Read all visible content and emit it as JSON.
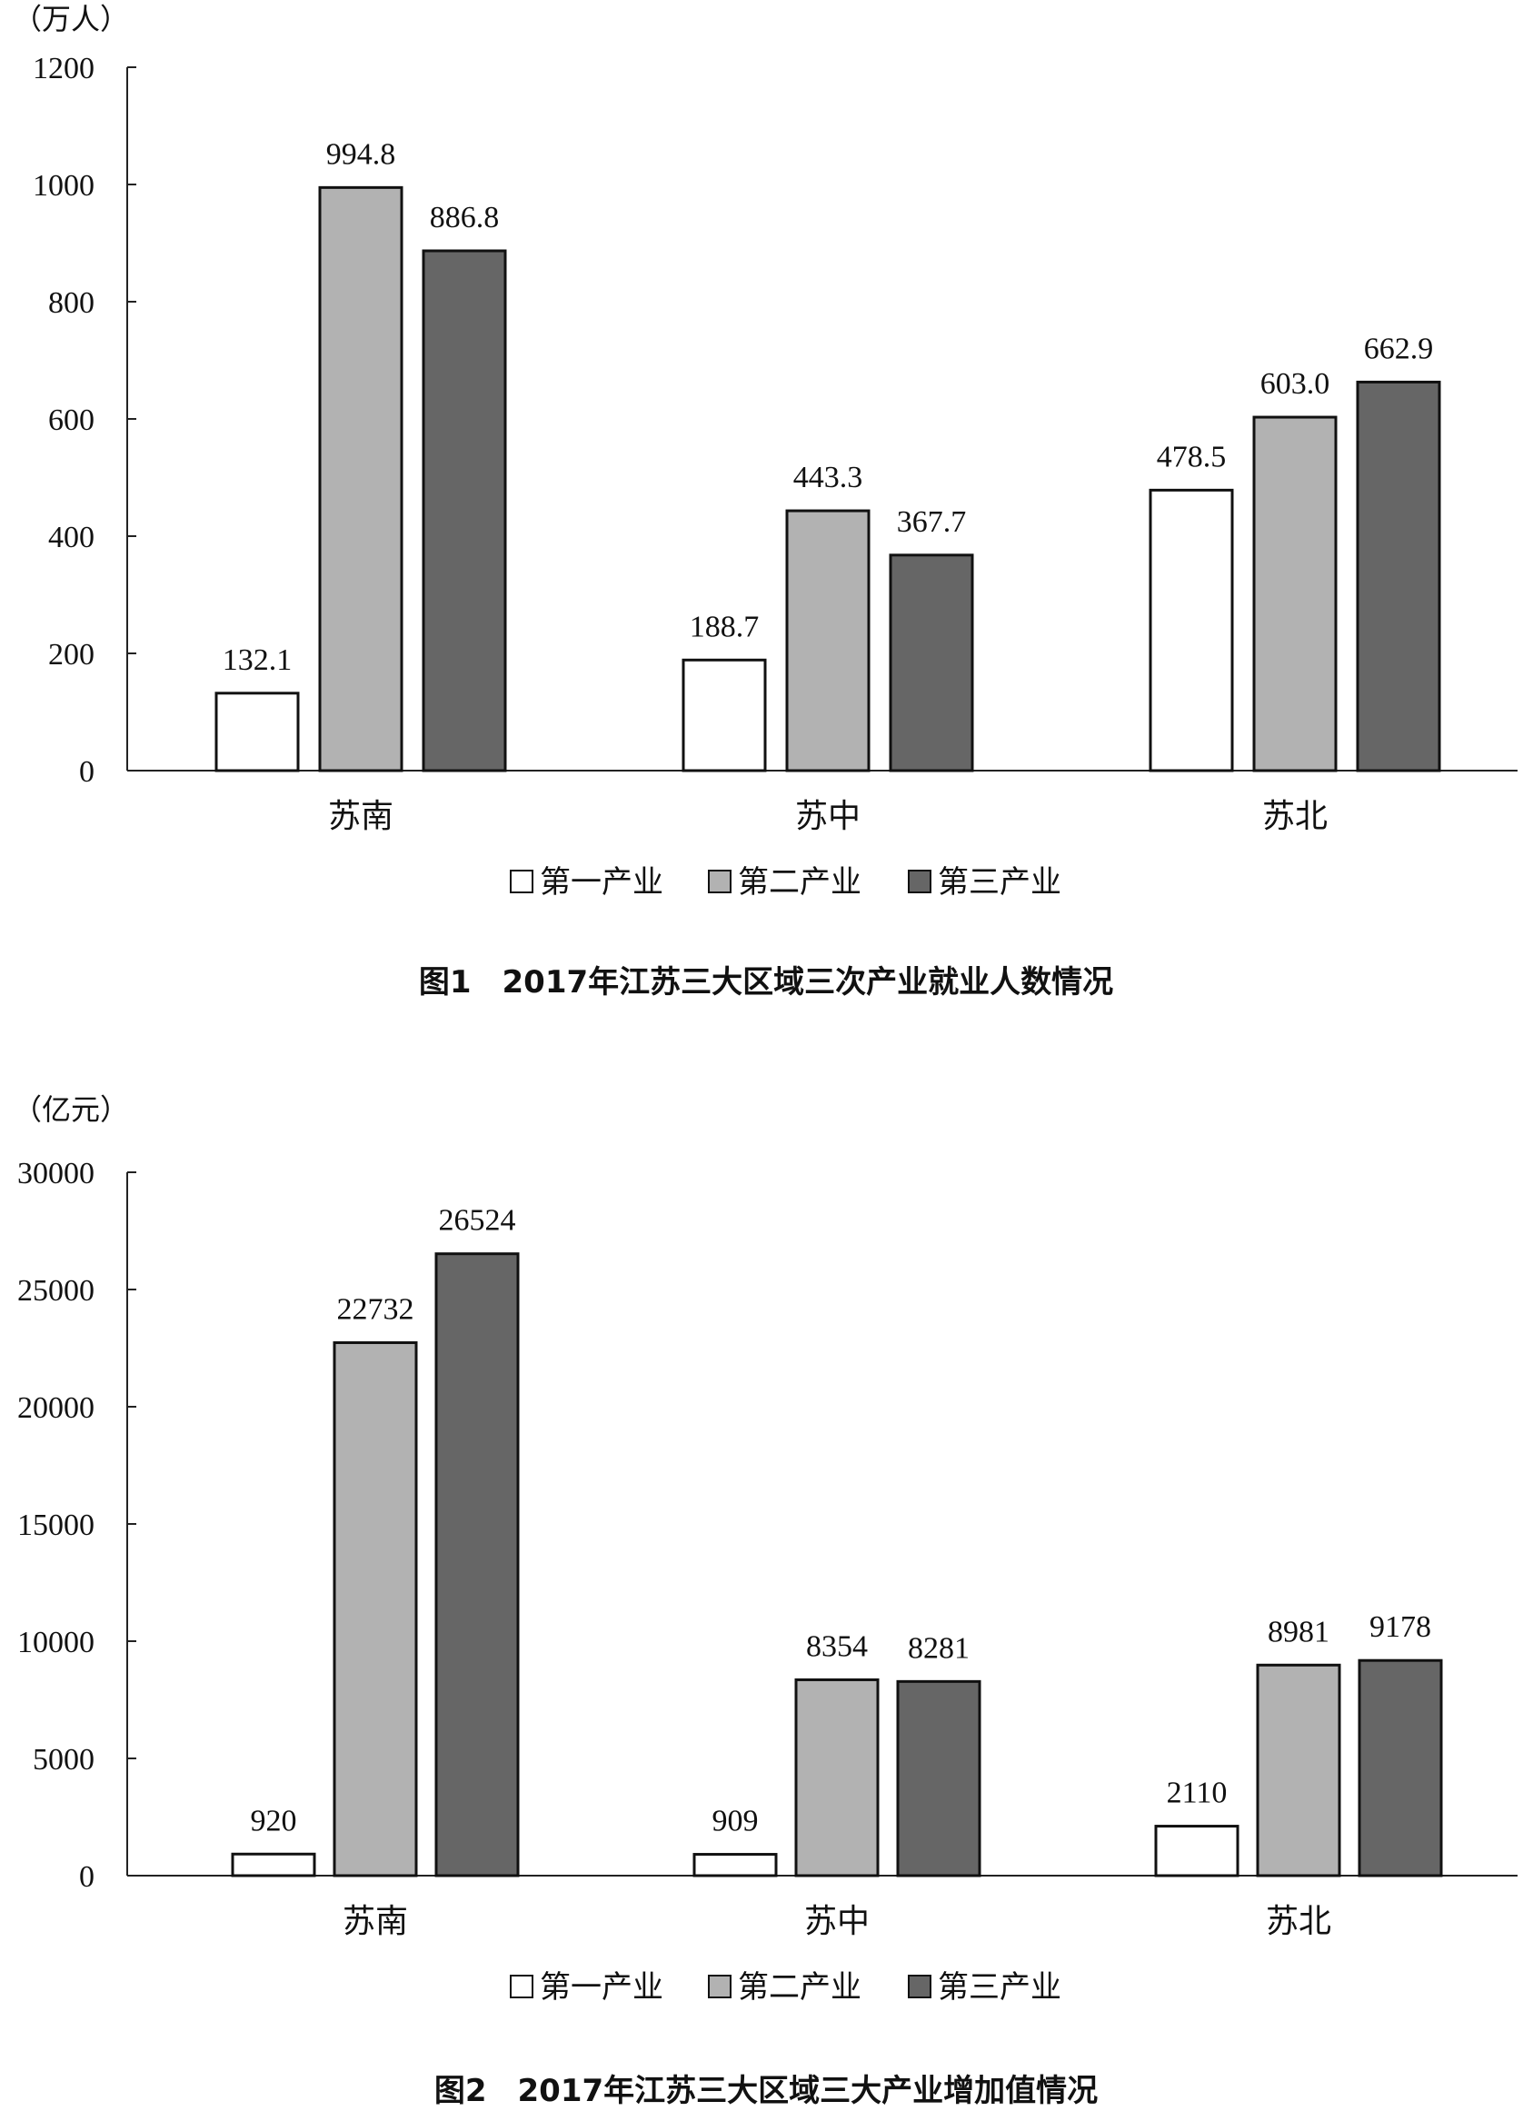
{
  "chart_data": [
    {
      "type": "bar",
      "title": "图1　2017年江苏三大区域三次产业就业人数情况",
      "unit": "（万人）",
      "categories": [
        "苏南",
        "苏中",
        "苏北"
      ],
      "series": [
        {
          "name": "第一产业",
          "values": [
            132.1,
            188.7,
            478.5
          ],
          "labels": [
            "132.1",
            "188.7",
            "478.5"
          ],
          "color": "#ffffff"
        },
        {
          "name": "第二产业",
          "values": [
            994.8,
            443.3,
            603.0
          ],
          "labels": [
            "994.8",
            "443.3",
            "603.0"
          ],
          "color": "#b2b2b2"
        },
        {
          "name": "第三产业",
          "values": [
            886.8,
            367.7,
            662.9
          ],
          "labels": [
            "886.8",
            "367.7",
            "662.9"
          ],
          "color": "#666666"
        }
      ],
      "ylim": [
        0,
        1200
      ],
      "yticks": [
        0,
        200,
        400,
        600,
        800,
        1000,
        1200
      ],
      "grid": false,
      "legend_position": "bottom"
    },
    {
      "type": "bar",
      "title": "图2　2017年江苏三大区域三大产业增加值情况",
      "unit": "（亿元）",
      "categories": [
        "苏南",
        "苏中",
        "苏北"
      ],
      "series": [
        {
          "name": "第一产业",
          "values": [
            920,
            909,
            2110
          ],
          "labels": [
            "920",
            "909",
            "2110"
          ],
          "color": "#ffffff"
        },
        {
          "name": "第二产业",
          "values": [
            22732,
            8354,
            8981
          ],
          "labels": [
            "22732",
            "8354",
            "8981"
          ],
          "color": "#b2b2b2"
        },
        {
          "name": "第三产业",
          "values": [
            26524,
            8281,
            9178
          ],
          "labels": [
            "26524",
            "8281",
            "9178"
          ],
          "color": "#666666"
        }
      ],
      "ylim": [
        0,
        30000
      ],
      "yticks": [
        0,
        5000,
        10000,
        15000,
        20000,
        25000,
        30000
      ],
      "grid": false,
      "legend_position": "bottom"
    }
  ]
}
